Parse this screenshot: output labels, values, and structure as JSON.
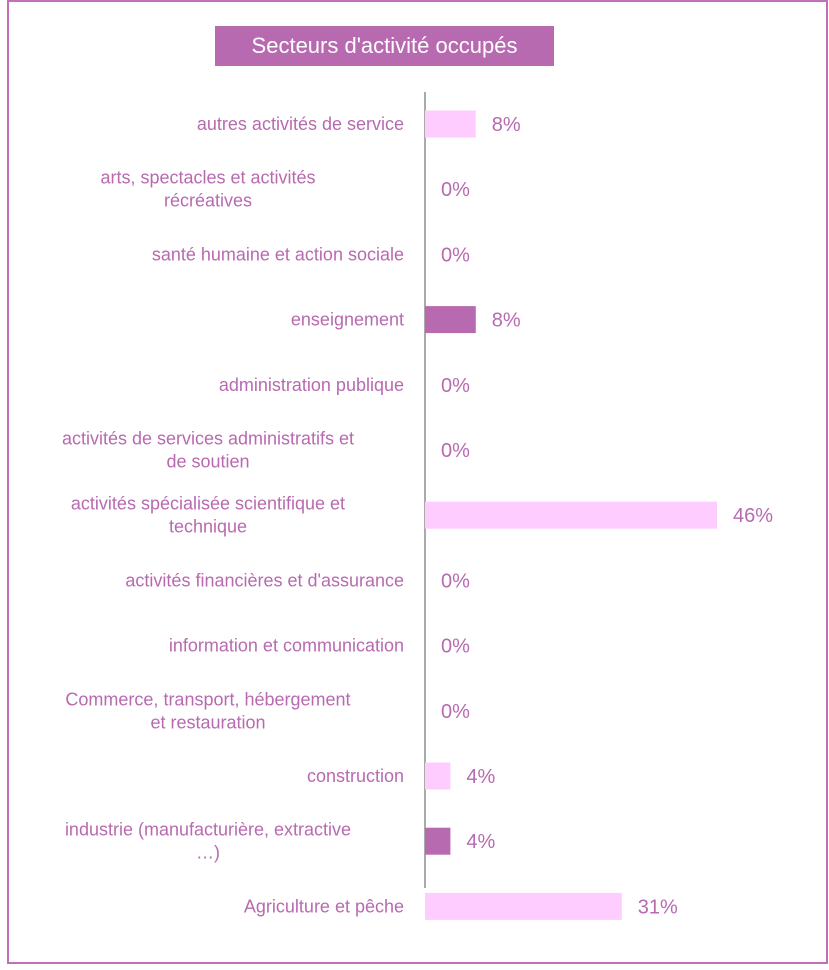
{
  "chart_data": {
    "type": "bar",
    "orientation": "horizontal",
    "title": "Secteurs d'activité occupés",
    "xlabel": "",
    "ylabel": "",
    "grid": false,
    "legend": "none",
    "value_format": "percent",
    "xlim": [
      0,
      0.46
    ],
    "colors": {
      "frame": "#c06fb8",
      "title_background": "#b86ab0",
      "title_text": "#ffffff",
      "label_text": "#b86ab0",
      "bar_light": "#ffccff",
      "bar_dark": "#b86ab0",
      "axis": "#555555"
    },
    "categories": [
      {
        "label_lines": [
          "autres activités de service"
        ],
        "value": 0.08,
        "value_label": "8%",
        "color": "#ffccff"
      },
      {
        "label_lines": [
          "arts, spectacles et activités",
          "récréatives"
        ],
        "value": 0,
        "value_label": "0%",
        "color": "#ffccff"
      },
      {
        "label_lines": [
          "santé humaine et action sociale"
        ],
        "value": 0,
        "value_label": "0%",
        "color": "#ffccff"
      },
      {
        "label_lines": [
          "enseignement"
        ],
        "value": 0.08,
        "value_label": "8%",
        "color": "#b86ab0"
      },
      {
        "label_lines": [
          "administration publique"
        ],
        "value": 0,
        "value_label": "0%",
        "color": "#ffccff"
      },
      {
        "label_lines": [
          "activités de services administratifs et",
          "de soutien"
        ],
        "value": 0,
        "value_label": "0%",
        "color": "#ffccff"
      },
      {
        "label_lines": [
          "activités spécialisée scientifique et",
          "technique"
        ],
        "value": 0.46,
        "value_label": "46%",
        "color": "#ffccff"
      },
      {
        "label_lines": [
          "activités financières et d'assurance"
        ],
        "value": 0,
        "value_label": "0%",
        "color": "#ffccff"
      },
      {
        "label_lines": [
          "information et communication"
        ],
        "value": 0,
        "value_label": "0%",
        "color": "#ffccff"
      },
      {
        "label_lines": [
          "Commerce, transport, hébergement",
          "et restauration"
        ],
        "value": 0,
        "value_label": "0%",
        "color": "#ffccff"
      },
      {
        "label_lines": [
          "construction"
        ],
        "value": 0.04,
        "value_label": "4%",
        "color": "#ffccff"
      },
      {
        "label_lines": [
          "industrie (manufacturière, extractive",
          "…)"
        ],
        "value": 0.04,
        "value_label": "4%",
        "color": "#b86ab0"
      },
      {
        "label_lines": [
          "Agriculture et pêche"
        ],
        "value": 0.31,
        "value_label": "31%",
        "color": "#ffccff"
      }
    ]
  }
}
